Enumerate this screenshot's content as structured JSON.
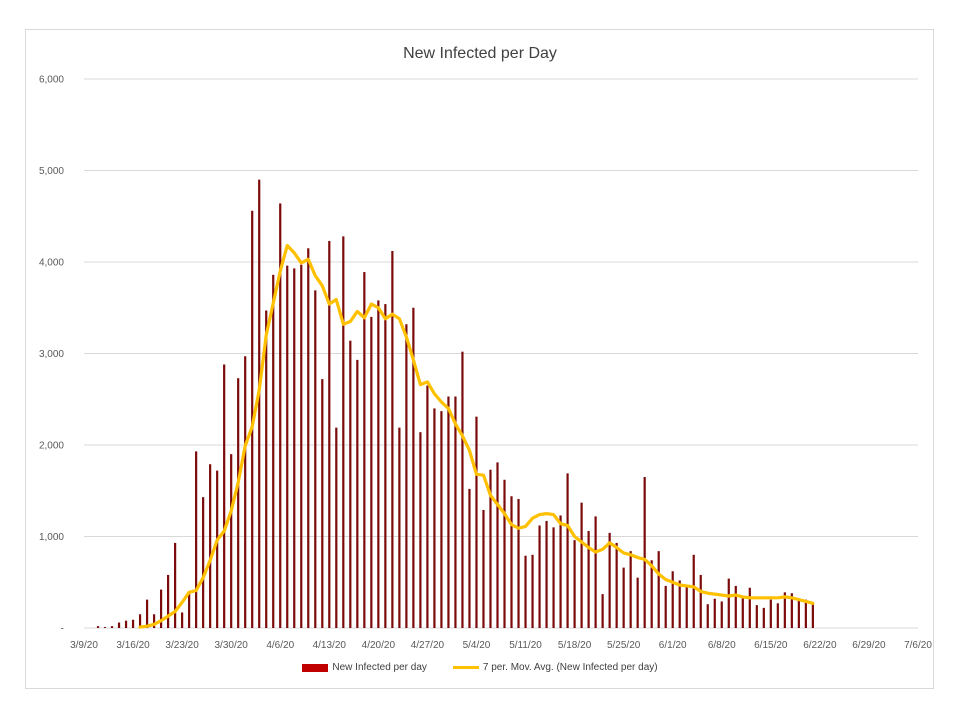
{
  "chart_data": {
    "type": "bar",
    "title": "New Infected per Day",
    "xlabel": "",
    "ylabel": "",
    "ylim": [
      0,
      6000
    ],
    "y_ticks": [
      "-",
      "1,000",
      "2,000",
      "3,000",
      "4,000",
      "5,000",
      "6,000"
    ],
    "y_tick_values": [
      0,
      1000,
      2000,
      3000,
      4000,
      5000,
      6000
    ],
    "x_tick_labels": [
      "3/9/20",
      "3/16/20",
      "3/23/20",
      "3/30/20",
      "4/6/20",
      "4/13/20",
      "4/20/20",
      "4/27/20",
      "5/4/20",
      "5/11/20",
      "5/18/20",
      "5/25/20",
      "6/1/20",
      "6/8/20",
      "6/15/20",
      "6/22/20",
      "6/29/20",
      "7/6/20"
    ],
    "x_start": "2020-03-09",
    "x_end": "2020-07-06",
    "grid": true,
    "legend_position": "bottom",
    "colors": {
      "bars": "#7b0a0a",
      "legend_bar": "#c00000",
      "moving_avg": "#ffc000",
      "grid": "#d9d9d9"
    },
    "series": [
      {
        "name": "New Infected per day",
        "type": "bar",
        "start_date": "2020-03-11",
        "values": [
          20,
          10,
          20,
          60,
          80,
          90,
          150,
          310,
          150,
          420,
          580,
          930,
          170,
          380,
          1930,
          1430,
          1790,
          1720,
          2880,
          1900,
          2730,
          2970,
          4560,
          4900,
          3470,
          3860,
          4640,
          3960,
          3930,
          3970,
          4150,
          3690,
          2720,
          4230,
          2190,
          4280,
          3140,
          2930,
          3890,
          3400,
          3580,
          3540,
          4120,
          2190,
          3320,
          3500,
          2140,
          2650,
          2400,
          2370,
          2530,
          2530,
          3020,
          1520,
          2310,
          1290,
          1730,
          1810,
          1620,
          1440,
          1410,
          790,
          800,
          1120,
          1170,
          1100,
          1230,
          1690,
          960,
          1370,
          1060,
          1220,
          370,
          1040,
          930,
          660,
          840,
          550,
          1650,
          740,
          840,
          460,
          620,
          520,
          460,
          800,
          580,
          260,
          320,
          290,
          540,
          460,
          330,
          440,
          250,
          220,
          310,
          270,
          390,
          380,
          320,
          310,
          260
        ]
      },
      {
        "name": "7 per. Mov. Avg. (New Infected per day)",
        "type": "line",
        "start_date": "2020-03-17",
        "values": [
          10,
          20,
          40,
          80,
          130,
          180,
          280,
          390,
          410,
          550,
          740,
          960,
          1060,
          1280,
          1590,
          1990,
          2200,
          2600,
          3200,
          3550,
          3900,
          4180,
          4100,
          3990,
          4030,
          3850,
          3740,
          3540,
          3590,
          3320,
          3350,
          3460,
          3390,
          3540,
          3500,
          3380,
          3430,
          3380,
          3180,
          2930,
          2660,
          2690,
          2560,
          2470,
          2400,
          2230,
          2100,
          1940,
          1680,
          1670,
          1450,
          1350,
          1250,
          1130,
          1090,
          1110,
          1200,
          1240,
          1250,
          1240,
          1140,
          1120,
          1000,
          940,
          880,
          830,
          860,
          930,
          880,
          820,
          800,
          770,
          750,
          680,
          590,
          530,
          500,
          470,
          460,
          450,
          400,
          380,
          370,
          360,
          350,
          360,
          340,
          330,
          330,
          330,
          330,
          330,
          340,
          330,
          310,
          290,
          270
        ]
      }
    ]
  }
}
